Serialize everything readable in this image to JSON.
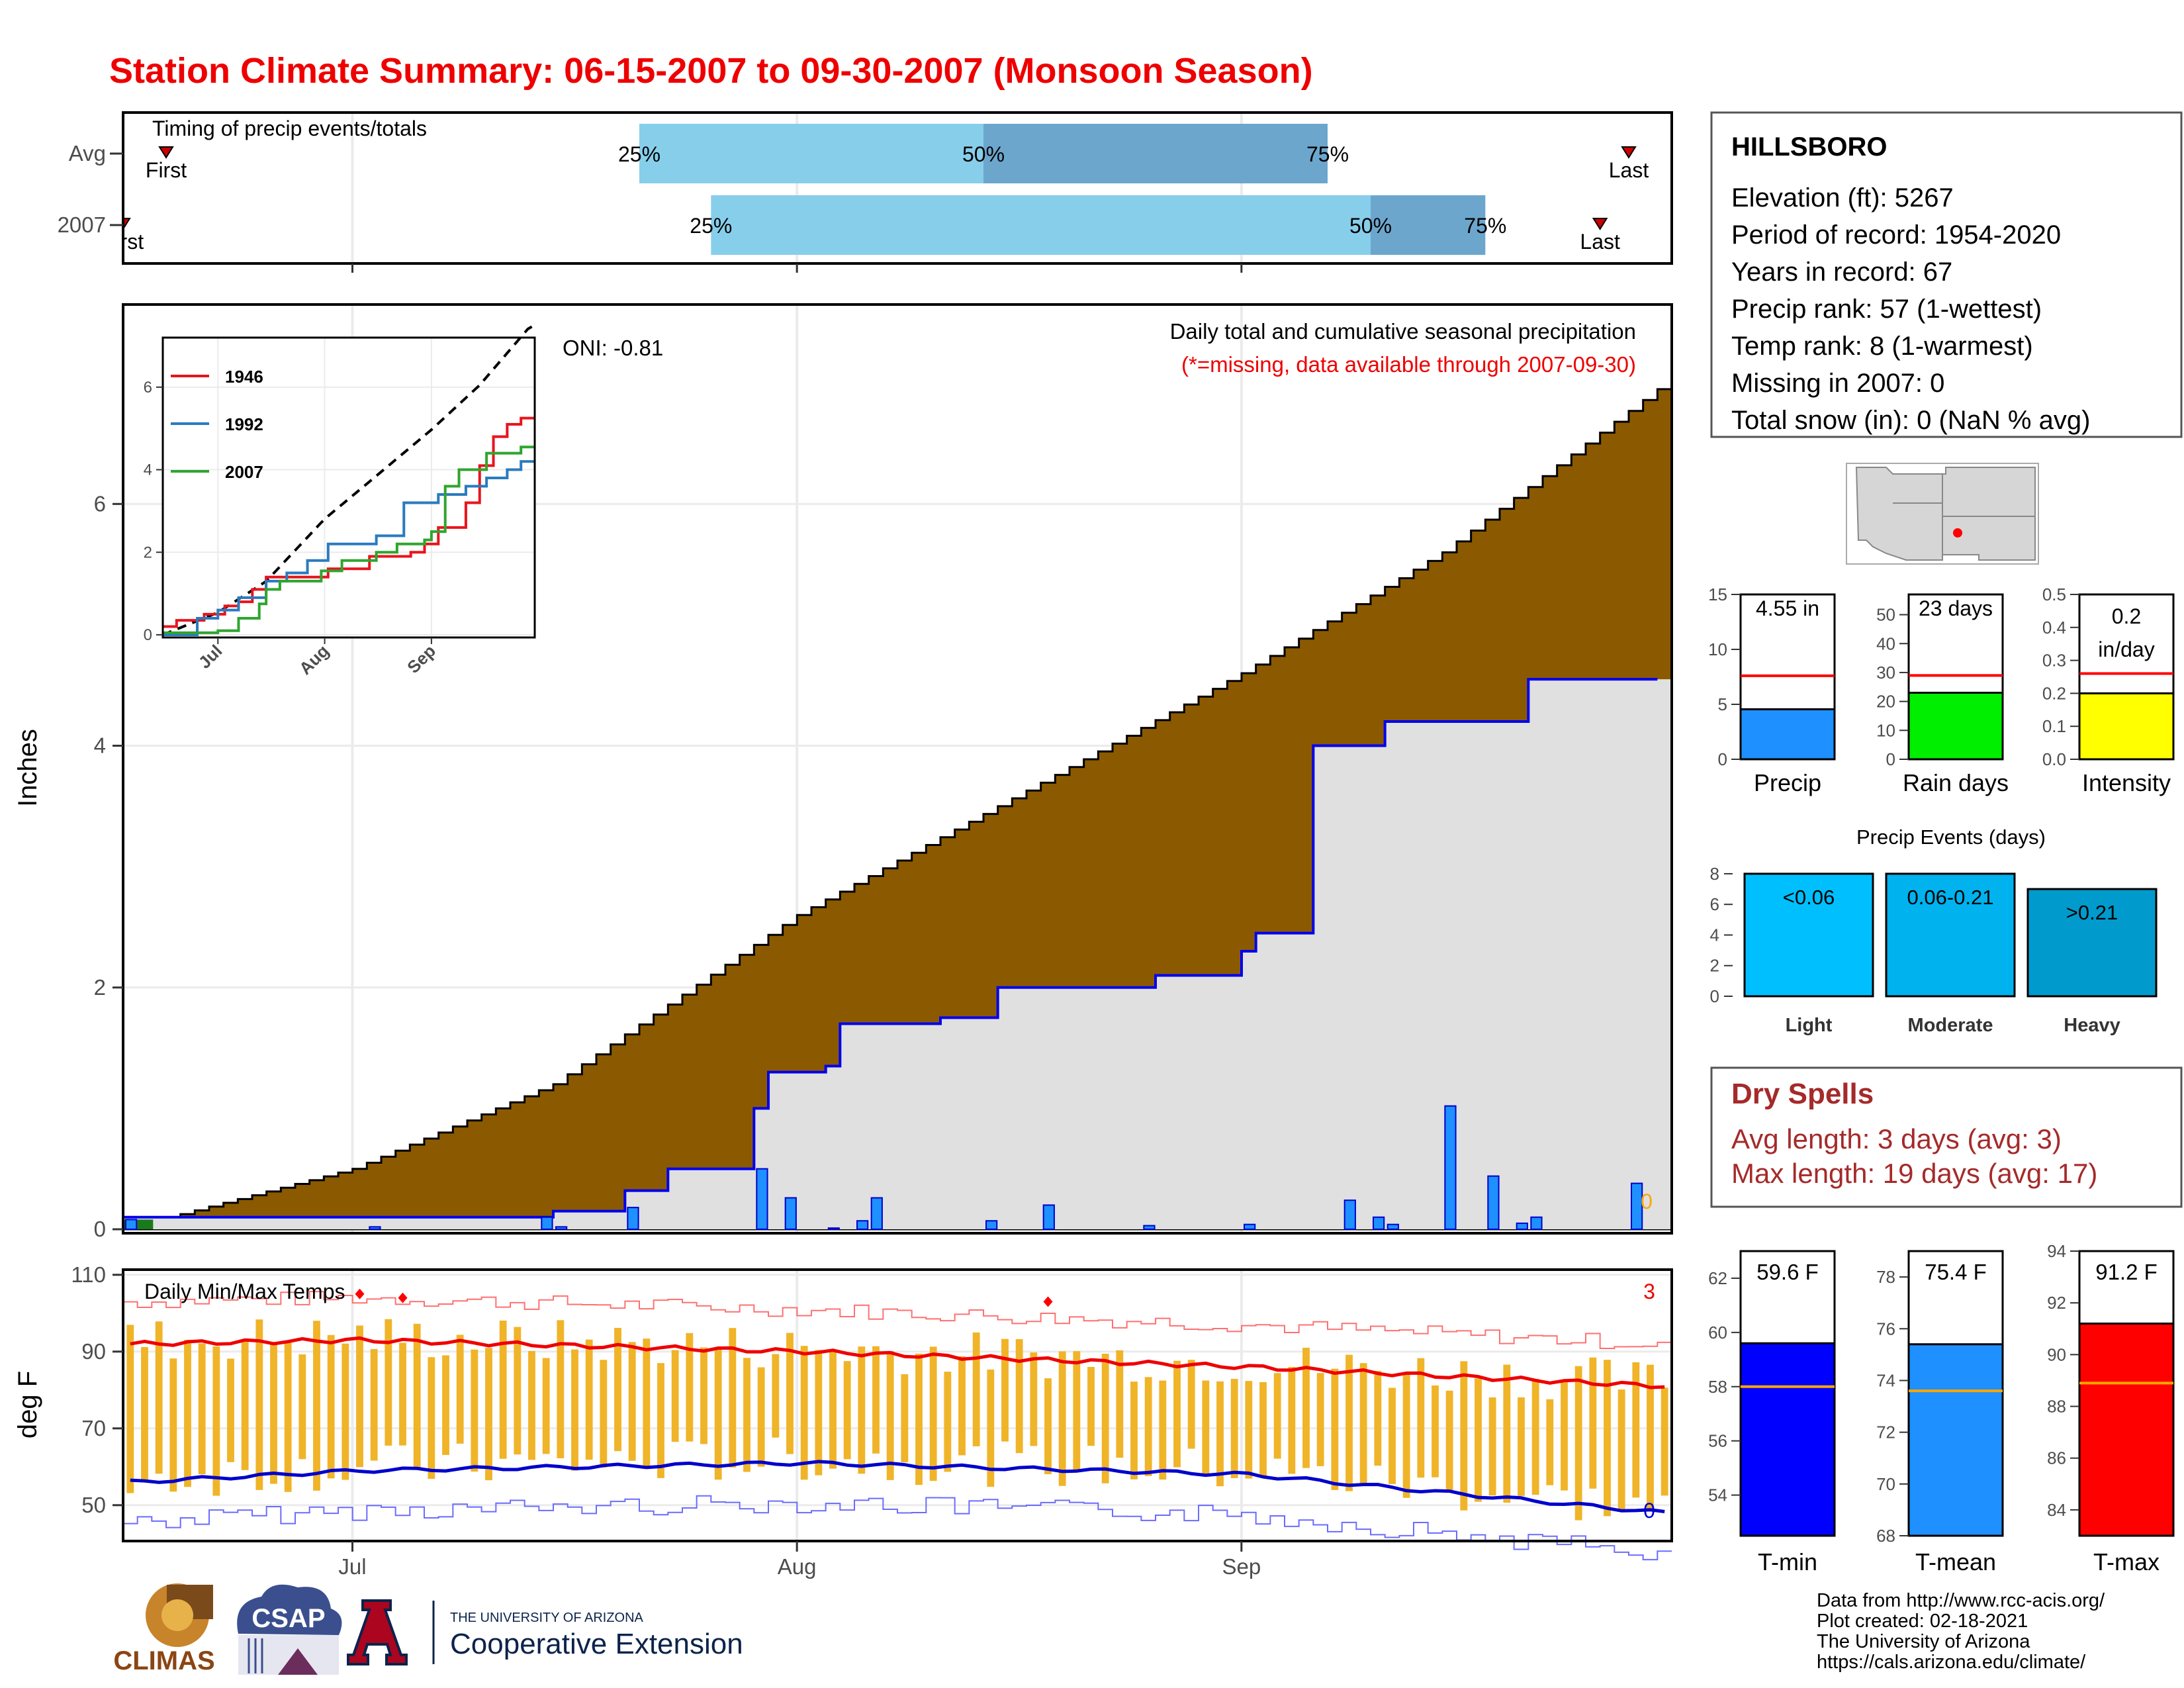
{
  "title": "Station Climate Summary: 06-15-2007 to 09-30-2007 (Monsoon Season)",
  "month_labels": [
    "Jul",
    "Aug",
    "Sep"
  ],
  "timing": {
    "title": "Timing of precip events/totals",
    "rows": [
      {
        "label": "Avg",
        "first_label": "First",
        "last_label": "Last",
        "first_day": 3,
        "last_day": 105,
        "p25": 36,
        "p50": 60,
        "p75": 84,
        "p25_label": "25%",
        "p50_label": "50%",
        "p75_label": "75%"
      },
      {
        "label": "2007",
        "first_label": "First",
        "last_label": "Last",
        "first_day": 0,
        "last_day": 103,
        "p25": 41,
        "p50": 87,
        "p75": 95,
        "p25_label": "25%",
        "p50_label": "50%",
        "p75_label": "75%"
      }
    ],
    "colors": {
      "light": "#87ceeb",
      "dark": "#6ca6cd"
    }
  },
  "precip_panel": {
    "ylabel": "Inches",
    "yticks": [
      0,
      2,
      4,
      6
    ],
    "header": "Daily total and cumulative seasonal precipitation",
    "missing_note": "(*=missing, data available through 2007-09-30)",
    "oni_label": "ONI: -0.81",
    "missing_count": "0",
    "colors": {
      "avg_fill": "#8b5a00",
      "obs_fill": "#e0e0e0",
      "obs_line": "#0000ee",
      "bar": "#1e90ff"
    }
  },
  "inset": {
    "yticks": [
      0,
      2,
      4,
      6
    ],
    "xticks": [
      "Jul",
      "Aug",
      "Sep"
    ],
    "legend": [
      {
        "name": "1946",
        "color": "#e8141c"
      },
      {
        "name": "1992",
        "color": "#2a7bbf"
      },
      {
        "name": "2007",
        "color": "#2fa52f"
      }
    ]
  },
  "temp_panel": {
    "title": "Daily Min/Max Temps",
    "ylabel": "deg F",
    "yticks": [
      50,
      70,
      90,
      110
    ],
    "max_count": "3",
    "min_count": "0",
    "colors": {
      "bar": "#f0b429",
      "max_line": "#ee0000",
      "min_line": "#0000cc"
    }
  },
  "station": {
    "name": "HILLSBORO",
    "lines": [
      "Elevation (ft): 5267",
      "Period of record: 1954-2020",
      "Years in record: 67",
      "Precip rank: 57 (1-wettest)",
      "Temp rank: 8 (1-warmest)",
      "Missing in 2007: 0",
      "Total snow (in): 0 (NaN % avg)"
    ]
  },
  "small_bars": [
    {
      "label": "Precip",
      "value_text": "4.55 in",
      "value": 4.55,
      "avg": 7.6,
      "ymax": 15,
      "yticks": [
        0,
        5,
        10,
        15
      ],
      "color": "#1e90ff"
    },
    {
      "label": "Rain days",
      "value_text": "23 days",
      "value": 23,
      "avg": 29,
      "ymax": 57,
      "yticks": [
        0,
        10,
        20,
        30,
        40,
        50
      ],
      "color": "#00ee00"
    },
    {
      "label": "Intensity",
      "value_text": "0.2 in/day",
      "value_line1": "0.2",
      "value_line2": "in/day",
      "value": 0.2,
      "avg": 0.26,
      "ymax": 0.5,
      "yticks": [
        0.0,
        0.1,
        0.2,
        0.3,
        0.4,
        0.5
      ],
      "color": "#ffff00"
    }
  ],
  "precip_events": {
    "title": "Precip Events (days)",
    "yticks": [
      0,
      2,
      4,
      6,
      8
    ],
    "bars": [
      {
        "label": "Light",
        "range": "<0.06",
        "value": 8,
        "color": "#00bfff"
      },
      {
        "label": "Moderate",
        "range": "0.06-0.21",
        "value": 8,
        "color": "#00b2ee"
      },
      {
        "label": "Heavy",
        "range": ">0.21",
        "value": 7,
        "color": "#009acd"
      }
    ]
  },
  "dry_spells": {
    "title": "Dry Spells",
    "avg_line": "Avg length: 3 days (avg: 3)",
    "max_line": "Max length: 19 days (avg: 17)"
  },
  "temp_bars": [
    {
      "label": "T-min",
      "value_text": "59.6 F",
      "value": 59.6,
      "avg": 58.0,
      "ymin": 52.5,
      "ymax": 63,
      "yticks": [
        54,
        56,
        58,
        60,
        62
      ],
      "color": "#0000ff"
    },
    {
      "label": "T-mean",
      "value_text": "75.4 F",
      "value": 75.4,
      "avg": 73.6,
      "ymin": 68,
      "ymax": 79,
      "yticks": [
        68,
        70,
        72,
        74,
        76,
        78
      ],
      "color": "#1e90ff"
    },
    {
      "label": "T-max",
      "value_text": "91.2 F",
      "value": 91.2,
      "avg": 88.9,
      "ymin": 83,
      "ymax": 94,
      "yticks": [
        84,
        86,
        88,
        90,
        92,
        94
      ],
      "color": "#ff0000"
    }
  ],
  "credits": [
    "Data from http://www.rcc-acis.org/",
    "Plot created: 02-18-2021",
    "The University of Arizona",
    "https://cals.arizona.edu/climate/"
  ],
  "logos": {
    "climas": "CLIMAS",
    "csap": "CSAP",
    "ua_small": "THE UNIVERSITY OF ARIZONA",
    "ua_big": "Cooperative Extension"
  },
  "chart_data": [
    {
      "type": "line",
      "title": "Daily total and cumulative seasonal precipitation",
      "ylabel": "Inches",
      "ylim": [
        0,
        7.65
      ],
      "x_start": "2007-06-15",
      "x_end": "2007-09-30",
      "series": [
        {
          "name": "avg",
          "points": [
            [
              "2007-06-15",
              0.0
            ],
            [
              "2007-07-01",
              0.5
            ],
            [
              "2007-07-15",
              1.2
            ],
            [
              "2007-08-01",
              2.6
            ],
            [
              "2007-08-15",
              3.5
            ],
            [
              "2007-09-01",
              4.6
            ],
            [
              "2007-09-15",
              5.6
            ],
            [
              "2007-09-30",
              6.95
            ]
          ]
        },
        {
          "name": "2007",
          "points": [
            [
              "2007-06-15",
              0.1
            ],
            [
              "2007-07-01",
              0.1
            ],
            [
              "2007-07-15",
              0.15
            ],
            [
              "2007-07-20",
              0.32
            ],
            [
              "2007-07-23",
              0.5
            ],
            [
              "2007-07-28",
              0.5
            ],
            [
              "2007-07-29",
              1.0
            ],
            [
              "2007-07-30",
              1.3
            ],
            [
              "2007-08-03",
              1.35
            ],
            [
              "2007-08-04",
              1.7
            ],
            [
              "2007-08-11",
              1.75
            ],
            [
              "2007-08-15",
              2.0
            ],
            [
              "2007-08-26",
              2.1
            ],
            [
              "2007-09-01",
              2.3
            ],
            [
              "2007-09-02",
              2.45
            ],
            [
              "2007-09-06",
              4.0
            ],
            [
              "2007-09-11",
              4.2
            ],
            [
              "2007-09-21",
              4.55
            ],
            [
              "2007-09-30",
              4.55
            ]
          ]
        }
      ],
      "daily_precip": [
        {
          "date": "2007-06-15",
          "value": 0.08
        },
        {
          "date": "2007-07-02",
          "value": 0.02
        },
        {
          "date": "2007-07-14",
          "value": 0.1
        },
        {
          "date": "2007-07-15",
          "value": 0.02
        },
        {
          "date": "2007-07-20",
          "value": 0.18
        },
        {
          "date": "2007-07-29",
          "value": 0.5
        },
        {
          "date": "2007-07-31",
          "value": 0.26
        },
        {
          "date": "2007-08-03",
          "value": 0.01
        },
        {
          "date": "2007-08-05",
          "value": 0.07
        },
        {
          "date": "2007-08-06",
          "value": 0.26
        },
        {
          "date": "2007-08-14",
          "value": 0.07
        },
        {
          "date": "2007-08-18",
          "value": 0.2
        },
        {
          "date": "2007-08-25",
          "value": 0.03
        },
        {
          "date": "2007-09-01",
          "value": 0.04
        },
        {
          "date": "2007-09-08",
          "value": 0.24
        },
        {
          "date": "2007-09-10",
          "value": 0.1
        },
        {
          "date": "2007-09-11",
          "value": 0.04
        },
        {
          "date": "2007-09-15",
          "value": 1.02
        },
        {
          "date": "2007-09-18",
          "value": 0.44
        },
        {
          "date": "2007-09-20",
          "value": 0.05
        },
        {
          "date": "2007-09-21",
          "value": 0.1
        },
        {
          "date": "2007-09-28",
          "value": 0.38
        }
      ]
    },
    {
      "type": "line",
      "title": "Daily Min/Max Temps",
      "ylabel": "deg F",
      "ylim": [
        41,
        111
      ],
      "series": [
        {
          "name": "avg max",
          "points": [
            [
              "2007-06-15",
              92
            ],
            [
              "2007-07-01",
              93
            ],
            [
              "2007-08-01",
              90
            ],
            [
              "2007-09-01",
              86
            ],
            [
              "2007-09-30",
              81
            ]
          ]
        },
        {
          "name": "avg min",
          "points": [
            [
              "2007-06-15",
              56
            ],
            [
              "2007-07-01",
              59
            ],
            [
              "2007-08-01",
              61
            ],
            [
              "2007-09-01",
              58
            ],
            [
              "2007-09-30",
              48
            ]
          ]
        }
      ]
    }
  ]
}
